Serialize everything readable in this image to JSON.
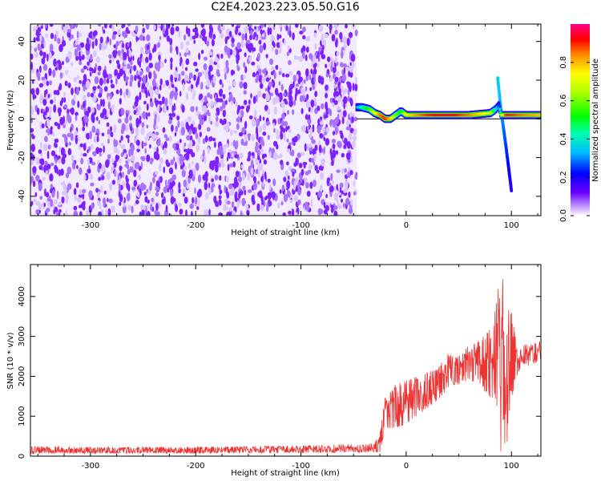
{
  "title": "C2E4.2023.223.05.50.G16",
  "chart_data": [
    {
      "type": "heatmap",
      "xlabel": "Height of straight line (km)",
      "ylabel": "Frequency (Hz)",
      "xlim": [
        -357,
        128
      ],
      "ylim": [
        -50,
        49
      ],
      "xticks": [
        -300,
        -200,
        -100,
        0,
        100
      ],
      "yticks": [
        -40,
        -20,
        0,
        20,
        40
      ],
      "grid": false,
      "colorbar": {
        "label": "Normalized spectral amplitude",
        "range": [
          0,
          1
        ],
        "ticks": [
          0.0,
          0.2,
          0.4,
          0.6,
          0.8
        ]
      },
      "features": {
        "noise_region_x": [
          -357,
          -47
        ],
        "signal_line": {
          "x": [
            -47,
            -42,
            -35,
            -30,
            -25,
            -20,
            -15,
            -10,
            -5,
            0,
            20,
            40,
            60,
            80,
            85,
            88,
            90,
            95,
            100,
            110,
            128
          ],
          "y": [
            6,
            6,
            5,
            3,
            2,
            0,
            0,
            2,
            4,
            2,
            2,
            2,
            2,
            3,
            5,
            7,
            2,
            2,
            2,
            2,
            2
          ],
          "amplitude": [
            0.3,
            0.45,
            0.55,
            0.7,
            0.85,
            0.9,
            0.8,
            0.6,
            0.5,
            0.75,
            0.9,
            0.95,
            0.85,
            0.7,
            0.4,
            0.25,
            0.6,
            0.9,
            0.9,
            0.85,
            0.8
          ]
        },
        "secondary_streak": {
          "x": [
            87,
            90,
            95,
            100
          ],
          "y": [
            21,
            5,
            -15,
            -37
          ]
        },
        "reference_line_y": 0
      }
    },
    {
      "type": "line",
      "xlabel": "Height of straight line (km)",
      "ylabel": "SNR (10 * v/v)",
      "xlim": [
        -357,
        128
      ],
      "ylim": [
        0,
        4800
      ],
      "xticks": [
        -300,
        -200,
        -100,
        0,
        100
      ],
      "yticks": [
        0,
        1000,
        2000,
        3000,
        4000
      ],
      "grid": false,
      "color": "#ee3333",
      "envelope": {
        "x": [
          -357,
          -300,
          -200,
          -100,
          -30,
          -25,
          -20,
          -10,
          0,
          10,
          20,
          30,
          40,
          50,
          60,
          70,
          80,
          85,
          90,
          95,
          100,
          105,
          110,
          120,
          128
        ],
        "low": [
          60,
          70,
          70,
          80,
          100,
          100,
          700,
          700,
          800,
          1000,
          1200,
          1400,
          1700,
          1800,
          1900,
          1800,
          1400,
          1300,
          0,
          0,
          1400,
          2000,
          2200,
          2300,
          2400
        ],
        "high": [
          250,
          230,
          230,
          260,
          320,
          700,
          1500,
          1800,
          1900,
          2000,
          2100,
          2200,
          2600,
          2500,
          2800,
          2900,
          3200,
          3700,
          4800,
          3900,
          3600,
          2800,
          2800,
          2800,
          2900
        ]
      }
    }
  ]
}
